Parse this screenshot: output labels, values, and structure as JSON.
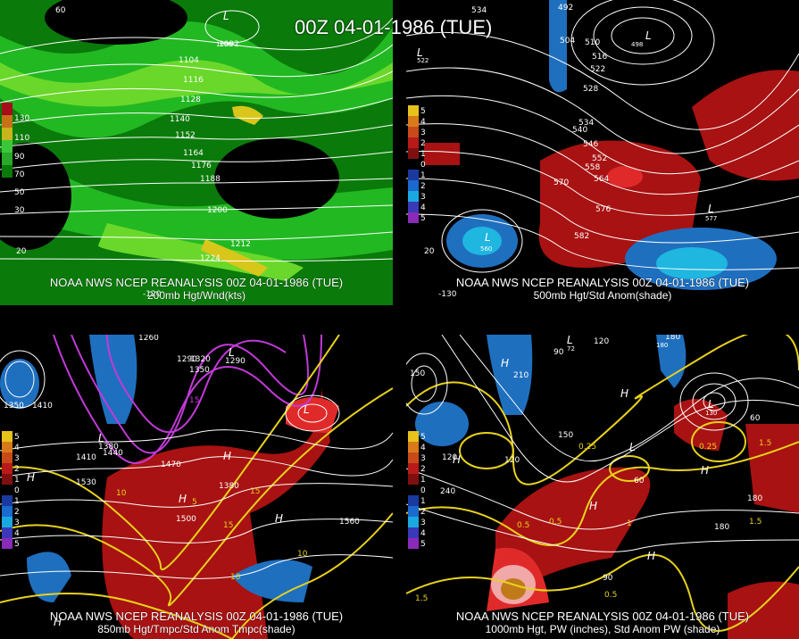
{
  "main_title": "00Z 04-01-1986 (TUE)",
  "panels": {
    "tl": {
      "line1": "NOAA NWS NCEP REANALYSIS 00Z 04-01-1986 (TUE)",
      "line2": "200mb Hgt/Wnd(kts)",
      "legend": [
        "130",
        "110",
        "90",
        "70",
        "50",
        "30"
      ],
      "contours": [
        "1092",
        "1104",
        "1116",
        "1128",
        "1140",
        "1152",
        "1164",
        "1176",
        "1188",
        "1200",
        "1212",
        "1224"
      ],
      "lows": [
        "L"
      ],
      "low_values": [
        "1086"
      ],
      "lat_lon": [
        "60",
        "20",
        "-120"
      ]
    },
    "tr": {
      "line1": "NOAA NWS NCEP REANALYSIS 00Z 04-01-1986 (TUE)",
      "line2": "500mb Hgt/Std Anom(shade)",
      "legend": [
        "5",
        "4",
        "3",
        "2",
        "1",
        "0",
        "1",
        "2",
        "3",
        "4",
        "5"
      ],
      "contours": [
        "534",
        "492",
        "504",
        "510",
        "516",
        "522",
        "528",
        "534",
        "540",
        "546",
        "552",
        "558",
        "564",
        "570",
        "576",
        "582"
      ],
      "lows": [
        "L",
        "L",
        "L",
        "L"
      ],
      "low_values": [
        "522",
        "498",
        "560",
        "577"
      ],
      "lat_lon": [
        "20",
        "-130"
      ]
    },
    "bl": {
      "line1": "NOAA NWS NCEP REANALYSIS 00Z 04-01-1986 (TUE)",
      "line2": "850mb Hgt/Tmpc/Std Anom Tmpc(shade)",
      "legend": [
        "5",
        "4",
        "3",
        "2",
        "1",
        "0",
        "1",
        "2",
        "3",
        "4",
        "5"
      ],
      "contours": [
        "1260",
        "1290",
        "1320",
        "1350",
        "1290",
        "1380",
        "1410",
        "1440",
        "1470",
        "1500",
        "1530",
        "1560",
        "1350",
        "1380",
        "1410"
      ],
      "temps": [
        "15",
        "10",
        "5",
        "15",
        "10",
        "15",
        "10"
      ],
      "highs": [
        "H",
        "H",
        "H",
        "H",
        "H"
      ],
      "lows": [
        "L",
        "L",
        "L"
      ]
    },
    "br": {
      "line1": "NOAA NWS NCEP REANALYSIS 00Z 04-01-1986 (TUE)",
      "line2": "1000mb Hgt, PW (inches), Std Anom PW (shade)",
      "legend": [
        "5",
        "4",
        "3",
        "2",
        "1",
        "0",
        "1",
        "2",
        "3",
        "4",
        "5"
      ],
      "contours": [
        "150",
        "120",
        "90",
        "60",
        "180",
        "210",
        "240",
        "120",
        "150",
        "180",
        "90",
        "60",
        "120",
        "180"
      ],
      "pw": [
        "1.5",
        "0.5",
        "0.25",
        "0.5",
        "1",
        "1.5",
        "0.25",
        "0.5",
        "1.5"
      ],
      "highs": [
        "H",
        "H",
        "H",
        "H",
        "H",
        "H"
      ],
      "lows": [
        "L",
        "L",
        "L"
      ],
      "low_values": [
        "72",
        "130",
        "180"
      ]
    }
  },
  "colors": {
    "green_dark": "#0a7a0a",
    "green_mid": "#22b822",
    "green_light": "#6ad82a",
    "yellow": "#d8c61a",
    "red_anom": "#a81212",
    "red_bright": "#e02a2a",
    "blue_anom": "#1f6fbf",
    "cyan_anom": "#1fb6e0",
    "magenta": "#c23ad8",
    "contour_yellow": "#e8d21a"
  },
  "legend_colors": [
    "#a50e1a",
    "#c87018",
    "#c8b41a",
    "#3ac83a",
    "#2aa82a",
    "#0a7a0a"
  ],
  "anom_legend_colors": [
    "#e6c21a",
    "#d87a1a",
    "#c84a1a",
    "#b81a1a",
    "#801010",
    "#000000",
    "#1a3aa0",
    "#1a6ad0",
    "#1aa8e0",
    "#3a3ab8",
    "#8a2ab8"
  ]
}
